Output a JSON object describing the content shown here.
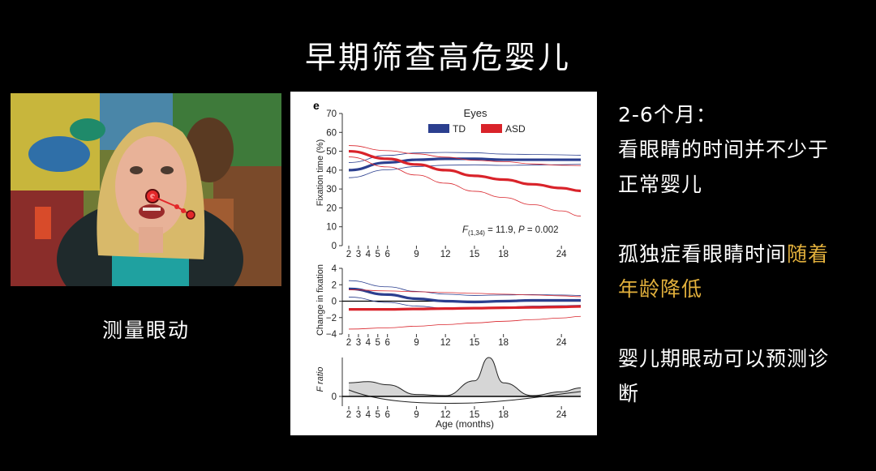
{
  "slide": {
    "title": "早期筛查高危婴儿"
  },
  "photo": {
    "caption": "测量眼动"
  },
  "notes": {
    "line1": "2-6个月：",
    "line2": "看眼睛的时间并不少于",
    "line3": "正常婴儿",
    "line4_plain": "孤独症看眼睛时间",
    "line4_highlight": "随着",
    "line5_highlight": "年龄降低",
    "line6": "婴儿期眼动可以预测诊",
    "line7": "断",
    "highlight_color": "#e2b03c"
  },
  "chart_data": {
    "type": "line",
    "panel_letter": "e",
    "legend_title": "Eyes",
    "series_colors": {
      "TD": "#2b3f8f",
      "ASD": "#d9232a"
    },
    "xlabel": "Age (months)",
    "x_ticks": [
      "2",
      "3",
      "4",
      "5",
      "6",
      "9",
      "12",
      "15",
      "18",
      "24"
    ],
    "xlim": [
      2,
      26
    ],
    "panels": [
      {
        "ylabel": "Fixation time (%)",
        "ylim": [
          0,
          70
        ],
        "y_ticks": [
          "0",
          "10",
          "20",
          "30",
          "40",
          "50",
          "60",
          "70"
        ],
        "annotation": "F(1,34) = 11.9, P = 0.002",
        "series": [
          {
            "name": "TD",
            "x": [
              2,
              6,
              9,
              12,
              15,
              18,
              21,
              24,
              26
            ],
            "values": [
              40,
              44,
              45.5,
              46,
              46,
              45.5,
              45.5,
              45.5,
              45.5
            ]
          },
          {
            "name": "ASD",
            "x": [
              2,
              6,
              9,
              12,
              15,
              18,
              21,
              24,
              26
            ],
            "values": [
              50,
              46,
              43,
              40,
              37,
              35,
              32.5,
              30.5,
              29
            ]
          }
        ]
      },
      {
        "ylabel": "Change in fixation",
        "ylim": [
          -4,
          4
        ],
        "y_ticks": [
          "4",
          "2",
          "0",
          "−2",
          "−4"
        ],
        "series": [
          {
            "name": "TD",
            "x": [
              2,
              6,
              9,
              12,
              15,
              18,
              21,
              24,
              26
            ],
            "values": [
              1.5,
              0.8,
              0.3,
              0,
              -0.1,
              0,
              0.1,
              0.1,
              0.1
            ]
          },
          {
            "name": "ASD",
            "x": [
              2,
              6,
              9,
              12,
              15,
              18,
              21,
              24,
              26
            ],
            "values": [
              -1.0,
              -1.0,
              -0.95,
              -0.9,
              -0.85,
              -0.8,
              -0.75,
              -0.7,
              -0.65
            ]
          }
        ]
      },
      {
        "ylabel": "F ratio",
        "y_ticks": [
          "0"
        ],
        "series": [
          {
            "name": "F ratio",
            "x": [
              2,
              4,
              6,
              9,
              12,
              15,
              16.5,
              18,
              21,
              24,
              26
            ],
            "values": [
              0.35,
              0.38,
              0.3,
              0.05,
              0.02,
              0.4,
              1.0,
              0.35,
              0.02,
              0.12,
              0.22
            ]
          }
        ]
      }
    ]
  }
}
